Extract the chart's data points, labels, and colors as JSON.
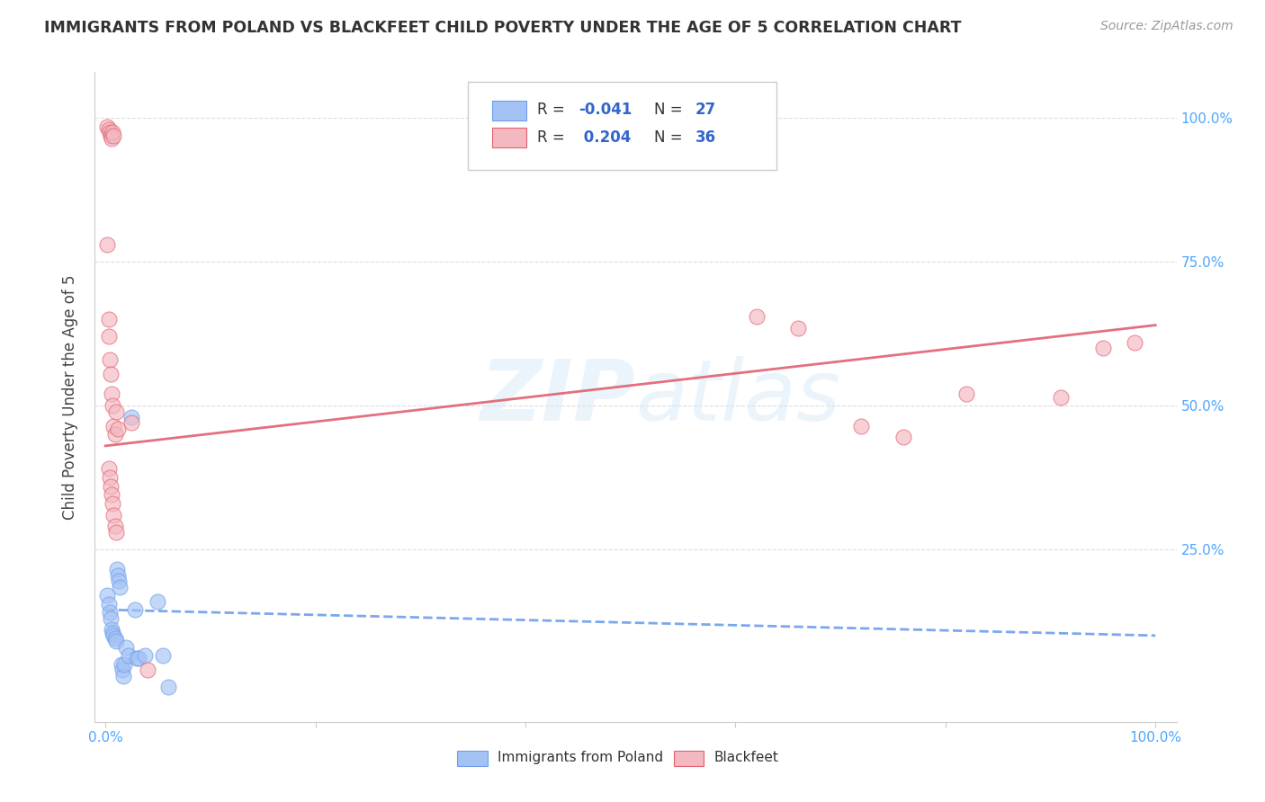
{
  "title": "IMMIGRANTS FROM POLAND VS BLACKFEET CHILD POVERTY UNDER THE AGE OF 5 CORRELATION CHART",
  "source": "Source: ZipAtlas.com",
  "ylabel": "Child Poverty Under the Age of 5",
  "legend_label1": "Immigrants from Poland",
  "legend_label2": "Blackfeet",
  "r1": "-0.041",
  "n1": "27",
  "r2": "0.204",
  "n2": "36",
  "color_blue": "#a4c2f4",
  "color_pink": "#f4b8c1",
  "edge_blue": "#6d9eeb",
  "edge_pink": "#e06070",
  "trendline_blue": "#6d9eeb",
  "trendline_pink": "#e06070",
  "watermark": "ZIPatlas",
  "blue_points_x": [
    0.002,
    0.003,
    0.004,
    0.005,
    0.006,
    0.007,
    0.008,
    0.009,
    0.01,
    0.011,
    0.012,
    0.013,
    0.014,
    0.015,
    0.016,
    0.017,
    0.018,
    0.02,
    0.022,
    0.025,
    0.028,
    0.03,
    0.032,
    0.038,
    0.05,
    0.055,
    0.06
  ],
  "blue_points_y": [
    0.17,
    0.155,
    0.14,
    0.13,
    0.11,
    0.105,
    0.1,
    0.095,
    0.09,
    0.215,
    0.205,
    0.195,
    0.185,
    0.05,
    0.04,
    0.03,
    0.05,
    0.08,
    0.065,
    0.48,
    0.145,
    0.06,
    0.06,
    0.065,
    0.16,
    0.065,
    0.01
  ],
  "pink_points_x": [
    0.002,
    0.003,
    0.004,
    0.005,
    0.006,
    0.007,
    0.008,
    0.003,
    0.004,
    0.005,
    0.006,
    0.007,
    0.008,
    0.009,
    0.003,
    0.004,
    0.005,
    0.006,
    0.007,
    0.008,
    0.009,
    0.01,
    0.002,
    0.003,
    0.01,
    0.012,
    0.025,
    0.04,
    0.62,
    0.66,
    0.72,
    0.76,
    0.82,
    0.91,
    0.95,
    0.98
  ],
  "pink_points_y": [
    0.985,
    0.98,
    0.975,
    0.97,
    0.965,
    0.975,
    0.97,
    0.62,
    0.58,
    0.555,
    0.52,
    0.5,
    0.465,
    0.45,
    0.39,
    0.375,
    0.36,
    0.345,
    0.33,
    0.31,
    0.29,
    0.28,
    0.78,
    0.65,
    0.49,
    0.46,
    0.47,
    0.04,
    0.655,
    0.635,
    0.465,
    0.445,
    0.52,
    0.515,
    0.6,
    0.61
  ],
  "blue_trend": [
    0.145,
    0.1
  ],
  "pink_trend": [
    0.43,
    0.64
  ],
  "xlim": [
    0.0,
    1.0
  ],
  "ylim": [
    -0.05,
    1.08
  ],
  "background_color": "#ffffff",
  "grid_color": "#dddddd",
  "tick_color": "#4da6ff"
}
